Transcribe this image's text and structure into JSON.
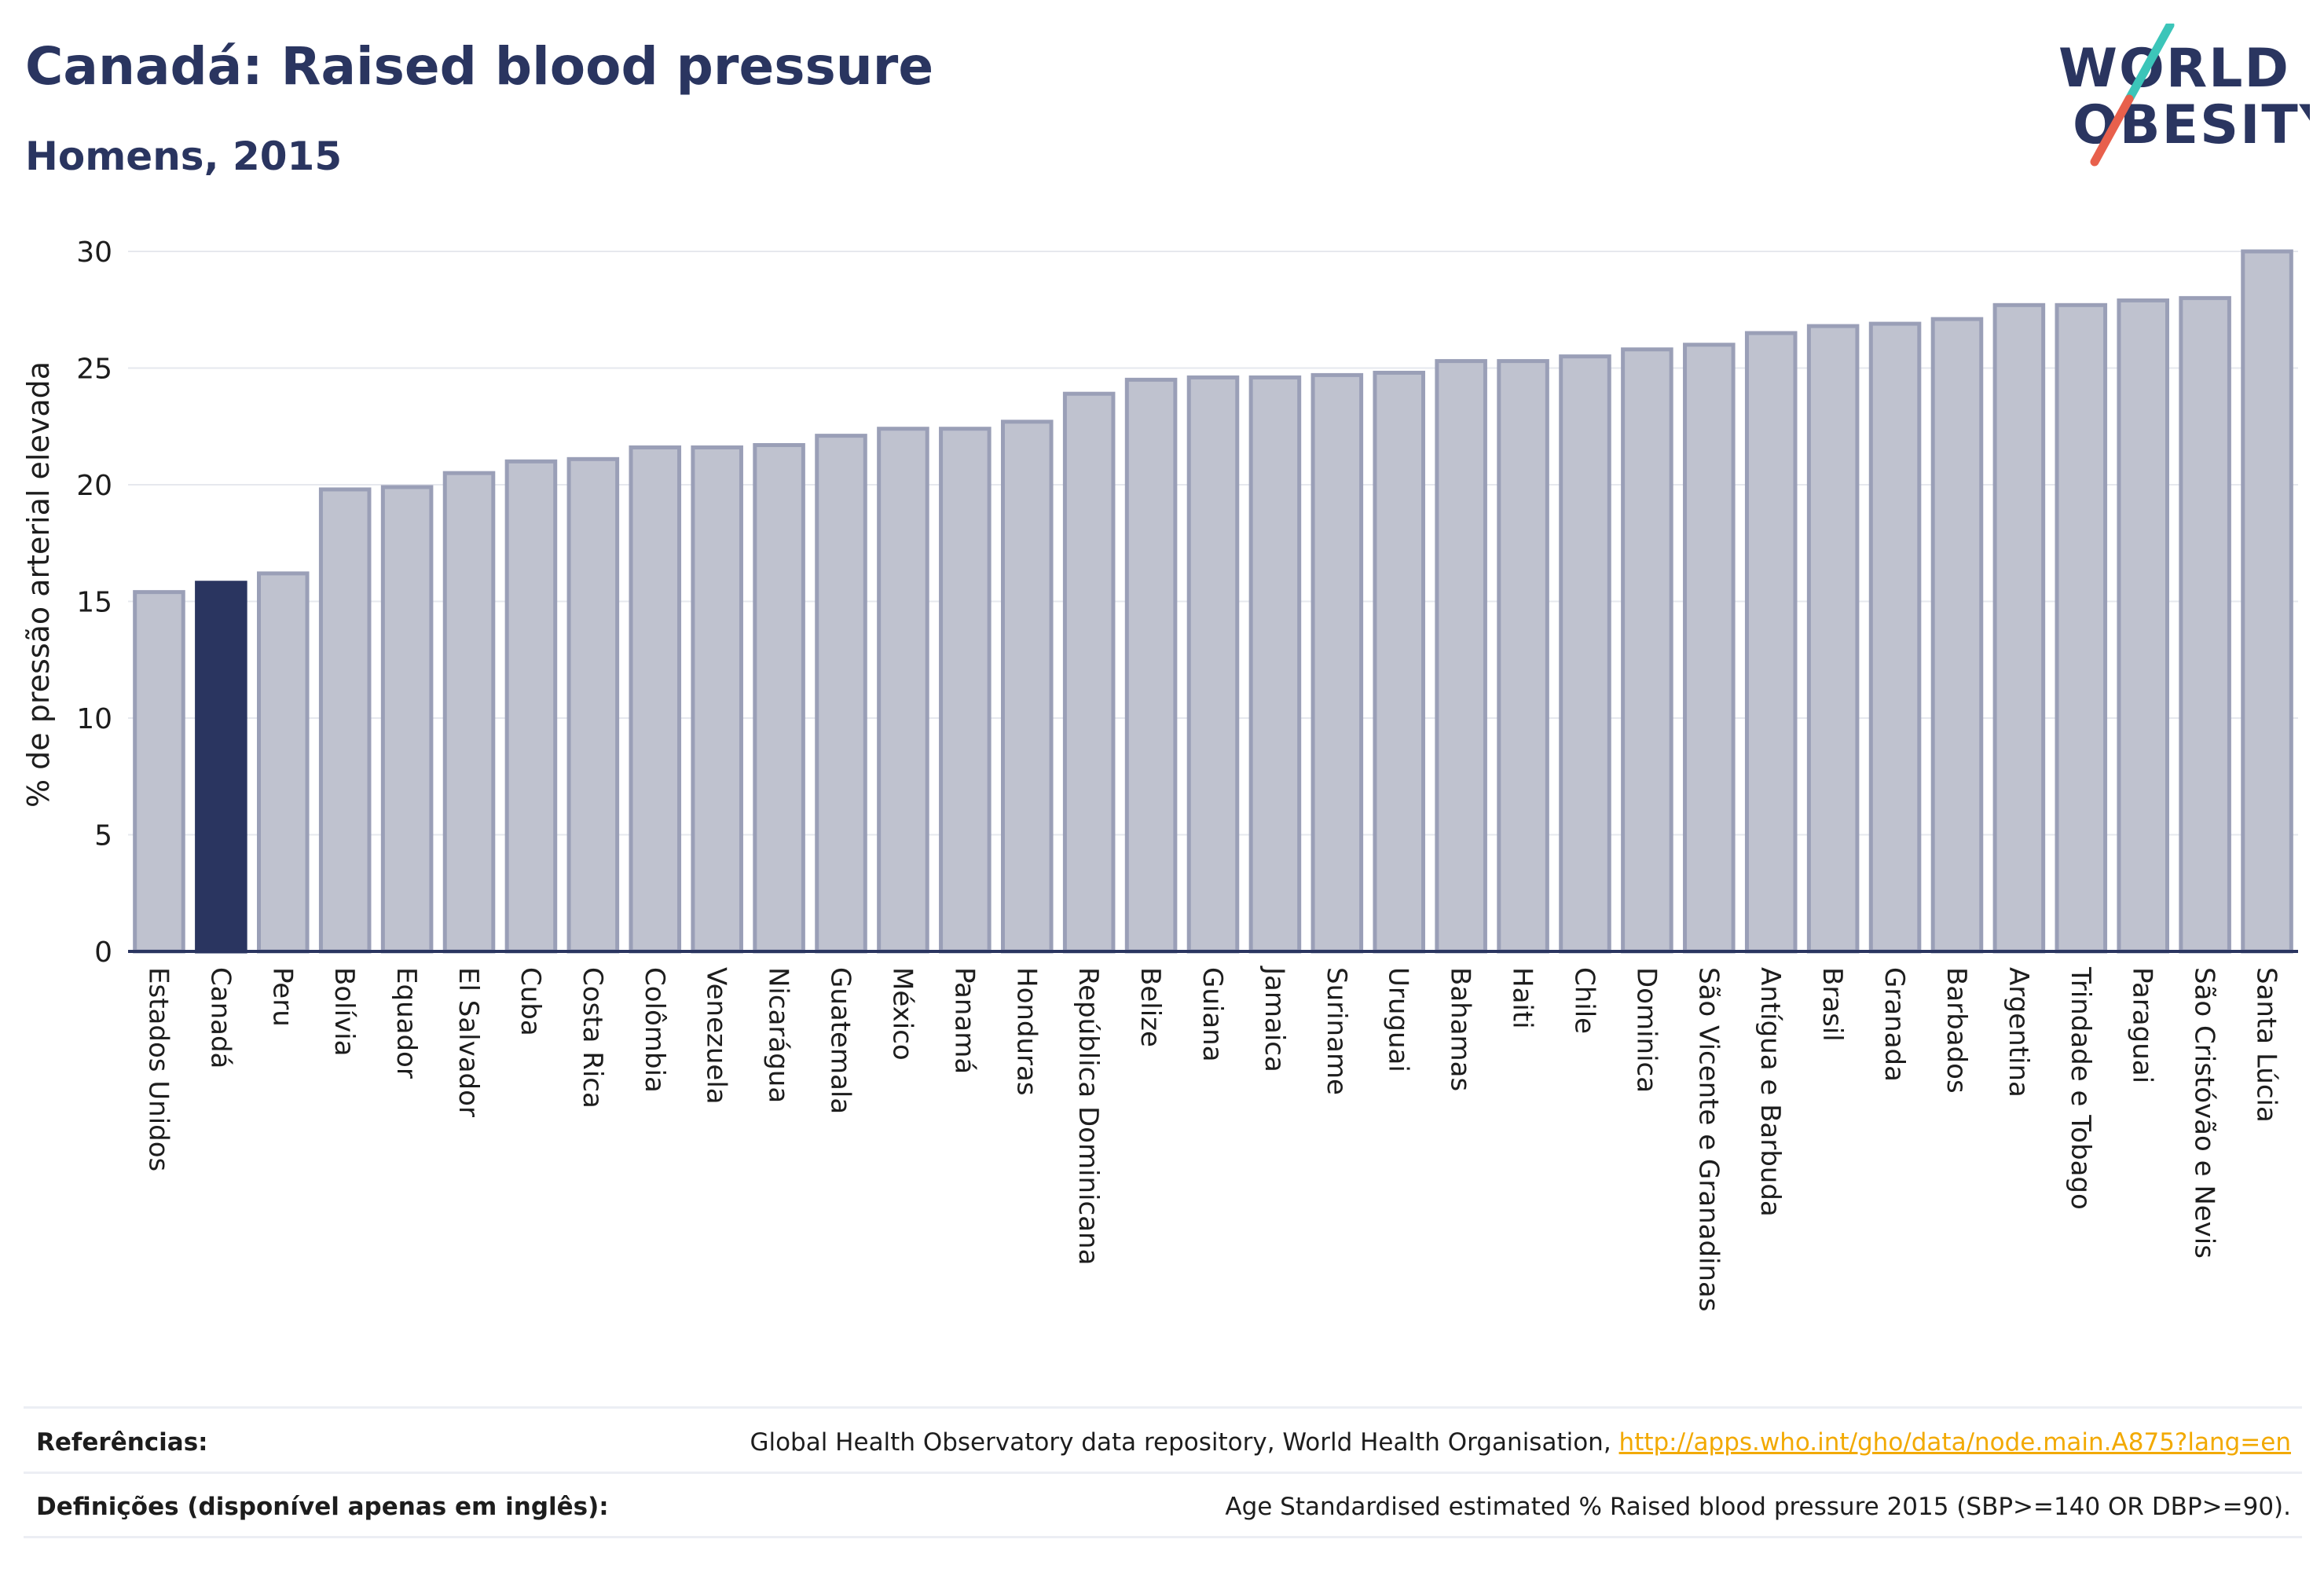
{
  "header": {
    "title": "Canadá: Raised blood pressure",
    "subtitle": "Homens, 2015"
  },
  "logo": {
    "line1": "WORLD",
    "line2": "OBESITY",
    "accent_colors": [
      "#3cc5b9",
      "#e8604c"
    ]
  },
  "chart_data": {
    "type": "bar",
    "title": "Canadá: Raised blood pressure",
    "subtitle": "Homens, 2015",
    "ylabel": "% de pressão arterial elevada",
    "xlabel": "",
    "ylim": [
      0,
      30
    ],
    "yticks": [
      0,
      5,
      10,
      15,
      20,
      25,
      30
    ],
    "grid": true,
    "highlight": "Canadá",
    "colors": {
      "default": "#bfc2cf",
      "default_border": "#9a9fb7",
      "highlight": "#2a3560"
    },
    "categories": [
      "Estados Unidos",
      "Canadá",
      "Peru",
      "Bolívia",
      "Equador",
      "El Salvador",
      "Cuba",
      "Costa Rica",
      "Colômbia",
      "Venezuela",
      "Nicarágua",
      "Guatemala",
      "México",
      "Panamá",
      "Honduras",
      "República Dominicana",
      "Belize",
      "Guiana",
      "Jamaica",
      "Suriname",
      "Uruguai",
      "Bahamas",
      "Haiti",
      "Chile",
      "Dominica",
      "São Vicente e Granadinas",
      "Antígua e Barbuda",
      "Brasil",
      "Granada",
      "Barbados",
      "Argentina",
      "Trindade e Tobago",
      "Paraguai",
      "São Cristóvão e Nevis",
      "Santa Lúcia"
    ],
    "values": [
      15.4,
      15.8,
      16.2,
      19.8,
      19.9,
      20.5,
      21.0,
      21.1,
      21.6,
      21.6,
      21.7,
      22.1,
      22.4,
      22.4,
      22.7,
      23.9,
      24.5,
      24.6,
      24.6,
      24.7,
      24.8,
      25.3,
      25.3,
      25.5,
      25.8,
      26.0,
      26.5,
      26.8,
      26.9,
      27.1,
      27.7,
      27.7,
      27.9,
      28.0,
      30.0
    ]
  },
  "footer": {
    "references_label": "Referências:",
    "references_text": "Global Health Observatory data repository, World Health Organisation, ",
    "references_link": "http://apps.who.int/gho/data/node.main.A875?lang=en",
    "definitions_label": "Definições (disponível apenas em inglês):",
    "definitions_text": "Age Standardised estimated % Raised blood pressure 2015 (SBP>=140 OR DBP>=90)."
  }
}
